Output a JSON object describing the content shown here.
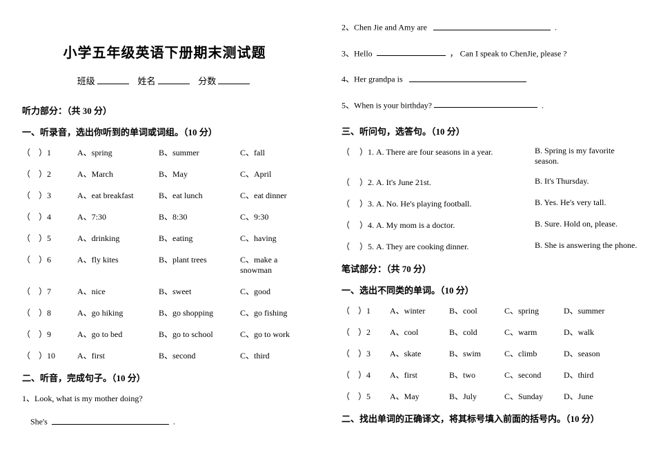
{
  "title": "小学五年级英语下册期末测试题",
  "id_labels": {
    "class": "班级",
    "name": "姓名",
    "score": "分数"
  },
  "left": {
    "listening_header": "听力部分：（共 30 分）",
    "sec1": {
      "heading": "一、听录音，选出你听到的单词或词组。（10 分）"
    },
    "items3": [
      {
        "n": "1",
        "a": "A、spring",
        "b": "B、summer",
        "c": "C、fall"
      },
      {
        "n": "2",
        "a": "A、March",
        "b": "B、May",
        "c": "C、April"
      },
      {
        "n": "3",
        "a": "A、eat breakfast",
        "b": "B、eat lunch",
        "c": "C、eat dinner"
      },
      {
        "n": "4",
        "a": "A、7:30",
        "b": "B、8:30",
        "c": "C、9:30"
      },
      {
        "n": "5",
        "a": "A、drinking",
        "b": "B、eating",
        "c": "C、having"
      },
      {
        "n": "6",
        "a": "A、fly kites",
        "b": "B、plant trees",
        "c": "C、make a snowman"
      },
      {
        "n": "7",
        "a": "A、nice",
        "b": "B、sweet",
        "c": "C、good"
      },
      {
        "n": "8",
        "a": "A、go hiking",
        "b": "B、go shopping",
        "c": "C、go fishing"
      },
      {
        "n": "9",
        "a": "A、go to bed",
        "b": "B、go to school",
        "c": "C、go to work"
      },
      {
        "n": "10",
        "a": "A、first",
        "b": "B、second",
        "c": "C、third"
      }
    ],
    "sec2": {
      "heading": "二、听音，完成句子。（10 分）"
    },
    "q1": "1、Look, what is my mother doing?",
    "q1b": "She's"
  },
  "right": {
    "fill2": "2、Chen Jie and Amy are",
    "fill3_pre": "3、Hello",
    "fill3_post": "， Can I speak to ChenJie, please ?",
    "fill4": "4、Her grandpa is",
    "fill5_pre": "5、When is your birthday?",
    "sec3": {
      "heading": "三、听问句，选答句。（10 分）"
    },
    "qa": [
      {
        "n": "1",
        "a": "A. There are four seasons in a year.",
        "b": "B. Spring is my favorite season."
      },
      {
        "n": "2",
        "a": "A. It's June 21st.",
        "b": "B. It's Thursday."
      },
      {
        "n": "3",
        "a": "A. No. He's playing football.",
        "b": "B. Yes. He's very tall."
      },
      {
        "n": "4",
        "a": "A. My mom is a doctor.",
        "b": "B. Sure. Hold on, please."
      },
      {
        "n": "5",
        "a": "A. They are cooking dinner.",
        "b": "B. She is answering the phone."
      }
    ],
    "written_header": "笔试部分：（共 70 分）",
    "sec4": {
      "heading": "一、选出不同类的单词。（10 分）"
    },
    "items4": [
      {
        "n": "1",
        "a": "A、winter",
        "b": "B、cool",
        "c": "C、spring",
        "d": "D、summer"
      },
      {
        "n": "2",
        "a": "A、cool",
        "b": "B、cold",
        "c": "C、warm",
        "d": "D、walk"
      },
      {
        "n": "3",
        "a": "A、skate",
        "b": "B、swim",
        "c": "C、climb",
        "d": "D、season"
      },
      {
        "n": "4",
        "a": "A、first",
        "b": "B、two",
        "c": "C、second",
        "d": "D、third"
      },
      {
        "n": "5",
        "a": "A、May",
        "b": "B、July",
        "c": "C、Sunday",
        "d": "D、June"
      }
    ],
    "sec5": {
      "heading": "二、找出单词的正确译文，将其标号填入前面的括号内。（10 分）"
    }
  },
  "glyph": {
    "lparen": "（",
    "rparen": "）",
    "period": "."
  }
}
